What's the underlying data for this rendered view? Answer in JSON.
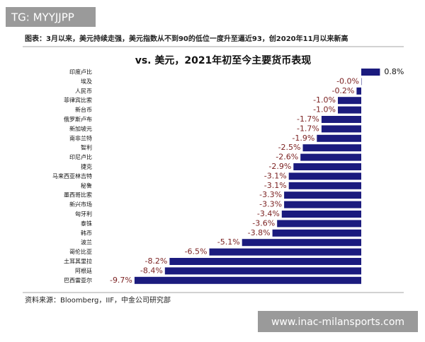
{
  "watermark_top": "TG: MYYJJPP",
  "watermark_bottom": "www.inac-milansports.com",
  "header": "图表：3月以来，美元持续走强，美元指数从不到90的低位一度升至逼近93，创2020年11月以来新高",
  "source": "资料来源：Bloomberg，IIF，中金公司研究部",
  "chart_data": {
    "type": "bar",
    "orientation": "horizontal",
    "title": "vs. 美元，2021年初至今主要货币表现",
    "categories": [
      "印度卢比",
      "埃及",
      "人民币",
      "菲律宾比索",
      "新台币",
      "俄罗斯卢布",
      "新加坡元",
      "南非兰特",
      "智利",
      "印尼卢比",
      "捷克",
      "马来西亚林吉特",
      "秘鲁",
      "墨西哥比索",
      "新兴市场",
      "匈牙利",
      "泰铢",
      "韩币",
      "波兰",
      "哥伦比亚",
      "土耳其里拉",
      "阿根廷",
      "巴西雷亚尔"
    ],
    "values": [
      0.8,
      -0.0,
      -0.2,
      -1.0,
      -1.0,
      -1.7,
      -1.7,
      -1.9,
      -2.5,
      -2.6,
      -2.9,
      -3.1,
      -3.1,
      -3.3,
      -3.3,
      -3.4,
      -3.6,
      -3.8,
      -5.1,
      -6.5,
      -8.2,
      -8.4,
      -9.7
    ],
    "value_labels": [
      "0.8%",
      "-0.0%",
      "-0.2%",
      "-1.0%",
      "-1.0%",
      "-1.7%",
      "-1.7%",
      "-1.9%",
      "-2.5%",
      "-2.6%",
      "-2.9%",
      "-3.1%",
      "-3.1%",
      "-3.3%",
      "-3.3%",
      "-3.4%",
      "-3.6%",
      "-3.8%",
      "-5.1%",
      "-6.5%",
      "-8.2%",
      "-8.4%",
      "-9.7%"
    ],
    "color": "#1b1b7e"
  }
}
